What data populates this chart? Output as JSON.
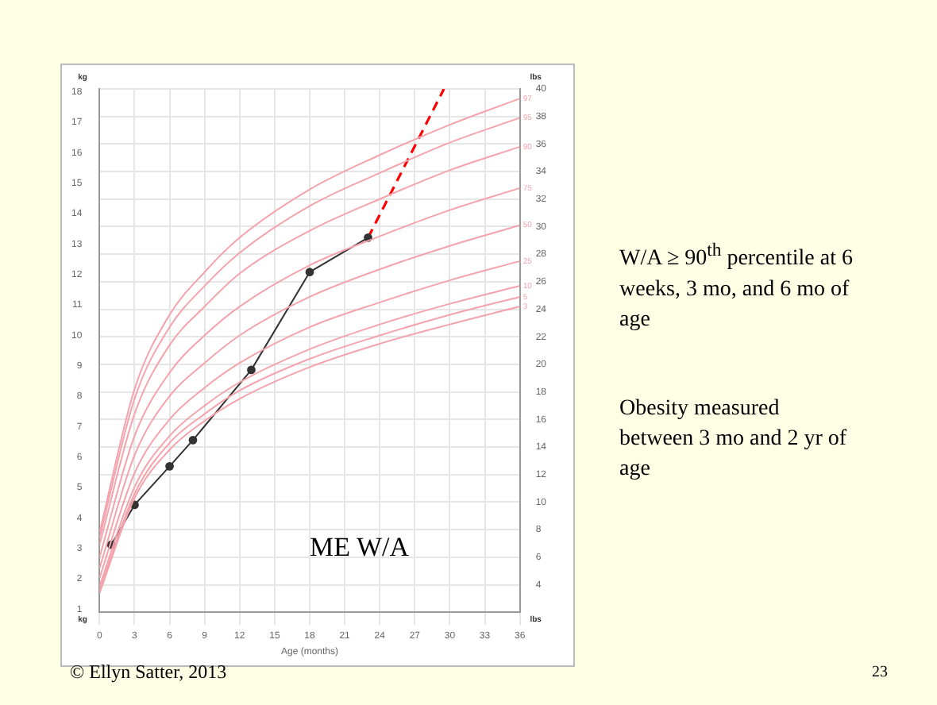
{
  "chart_data": {
    "type": "line",
    "xlabel": "Age (months)",
    "ylabel": "lbs",
    "y2label": "kg",
    "xlim": [
      0,
      36
    ],
    "xticks": [
      0,
      3,
      6,
      9,
      12,
      15,
      18,
      21,
      24,
      27,
      30,
      33,
      36
    ],
    "ylim": [
      2,
      40
    ],
    "yticks": [
      4,
      6,
      8,
      10,
      12,
      14,
      16,
      18,
      20,
      22,
      24,
      26,
      28,
      30,
      32,
      34,
      36,
      38,
      40
    ],
    "y2lim": [
      0.9,
      18.1
    ],
    "y2ticks": [
      1,
      2,
      3,
      4,
      5,
      6,
      7,
      8,
      9,
      10,
      11,
      12,
      13,
      14,
      15,
      16,
      17,
      18
    ],
    "grid": true,
    "legend": false,
    "series": [
      {
        "name": "97",
        "color": "#f4a3ad",
        "x": [
          0,
          3,
          6,
          9,
          12,
          18,
          24,
          30,
          36
        ],
        "values": [
          7.8,
          18.2,
          23.6,
          26.7,
          29.2,
          32.7,
          35.2,
          37.4,
          39.3
        ]
      },
      {
        "name": "95",
        "color": "#f4a3ad",
        "x": [
          0,
          3,
          6,
          9,
          12,
          18,
          24,
          30,
          36
        ],
        "values": [
          7.4,
          17.5,
          22.7,
          25.7,
          28.1,
          31.5,
          33.9,
          36.1,
          37.9
        ]
      },
      {
        "name": "90",
        "color": "#f4a3ad",
        "x": [
          0,
          3,
          6,
          9,
          12,
          18,
          24,
          30,
          36
        ],
        "values": [
          6.9,
          16.4,
          21.4,
          24.2,
          26.6,
          29.7,
          32.0,
          34.1,
          35.8
        ]
      },
      {
        "name": "75",
        "color": "#f4a3ad",
        "x": [
          0,
          3,
          6,
          9,
          12,
          18,
          24,
          30,
          36
        ],
        "values": [
          6.0,
          14.8,
          19.4,
          22.1,
          24.2,
          27.2,
          29.3,
          31.2,
          32.8
        ]
      },
      {
        "name": "50",
        "color": "#f4a3ad",
        "x": [
          0,
          3,
          6,
          9,
          12,
          18,
          24,
          30,
          36
        ],
        "values": [
          5.2,
          13.4,
          17.7,
          20.1,
          22.1,
          24.9,
          26.9,
          28.6,
          30.1
        ]
      },
      {
        "name": "25",
        "color": "#f4a3ad",
        "x": [
          0,
          3,
          6,
          9,
          12,
          18,
          24,
          30,
          36
        ],
        "values": [
          4.5,
          12.1,
          16.0,
          18.3,
          20.1,
          22.7,
          24.5,
          26.1,
          27.5
        ]
      },
      {
        "name": "10",
        "color": "#f4a3ad",
        "x": [
          0,
          3,
          6,
          9,
          12,
          18,
          24,
          30,
          36
        ],
        "values": [
          3.9,
          11.1,
          14.8,
          17.0,
          18.7,
          21.1,
          22.9,
          24.4,
          25.7
        ]
      },
      {
        "name": "5",
        "color": "#f4a3ad",
        "x": [
          0,
          3,
          6,
          9,
          12,
          18,
          24,
          30,
          36
        ],
        "values": [
          3.6,
          10.6,
          14.3,
          16.4,
          18.1,
          20.4,
          22.1,
          23.6,
          24.9
        ]
      },
      {
        "name": "3",
        "color": "#f4a3ad",
        "x": [
          0,
          3,
          6,
          9,
          12,
          18,
          24,
          30,
          36
        ],
        "values": [
          3.4,
          10.3,
          13.8,
          15.9,
          17.5,
          19.8,
          21.5,
          22.9,
          24.2
        ]
      },
      {
        "color": "#333333",
        "marker": "circle",
        "x": [
          1,
          3,
          6,
          8,
          13,
          18,
          23
        ],
        "values": [
          6.9,
          9.8,
          12.6,
          14.5,
          19.6,
          26.7,
          29.2
        ]
      },
      {
        "color": "#ff0000",
        "line_style": "dashed",
        "x": [
          23,
          29.5
        ],
        "values": [
          29.2,
          40
        ]
      }
    ],
    "annotations": [
      "ME W/A",
      "W/A ≥ 90$^{th}$ percentile at 6 weeks, 3 mo, and 6 mo of age",
      "Obesity measured between 3 mo and 2 yr of age",
      "© Ellyn Satter, 2013",
      "23"
    ]
  }
}
